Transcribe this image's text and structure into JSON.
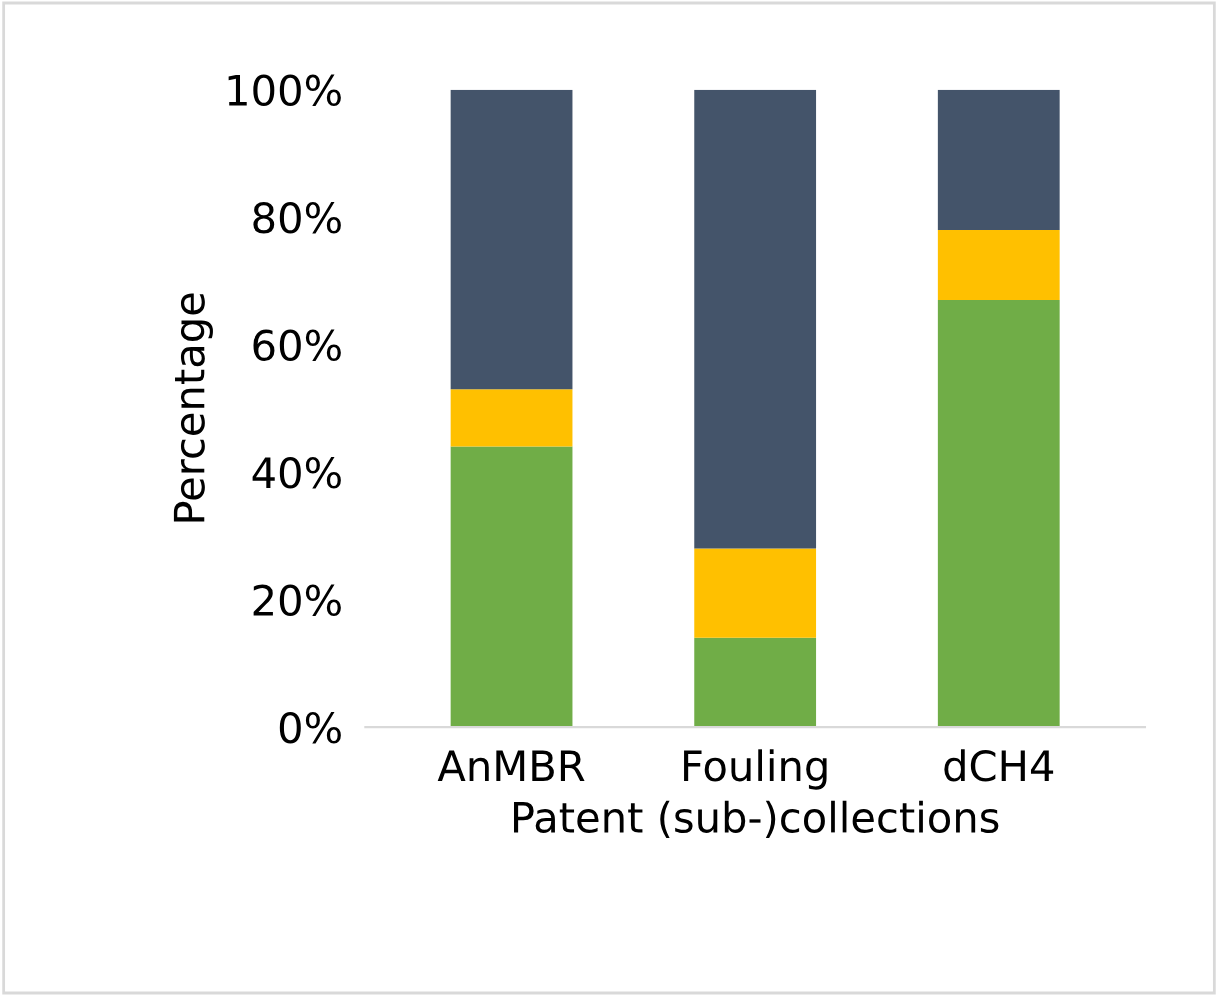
{
  "chart_data": {
    "type": "bar",
    "stacked": true,
    "xlabel": "Patent (sub-)collections",
    "ylabel": "Percentage",
    "categories": [
      "AnMBR",
      "Fouling",
      "dCH4"
    ],
    "series": [
      {
        "color": "#70ad47",
        "values": [
          44,
          14,
          67
        ]
      },
      {
        "color": "#ffc000",
        "values": [
          9,
          14,
          11
        ]
      },
      {
        "color": "#44546a",
        "values": [
          47,
          72,
          22
        ]
      }
    ],
    "ylim": [
      0,
      100
    ],
    "yticks": [
      {
        "value": 0,
        "label": "0%"
      },
      {
        "value": 20,
        "label": "20%"
      },
      {
        "value": 40,
        "label": "40%"
      },
      {
        "value": 60,
        "label": "60%"
      },
      {
        "value": 80,
        "label": "80%"
      },
      {
        "value": 100,
        "label": "100%"
      }
    ],
    "grid": false,
    "legend": false
  }
}
